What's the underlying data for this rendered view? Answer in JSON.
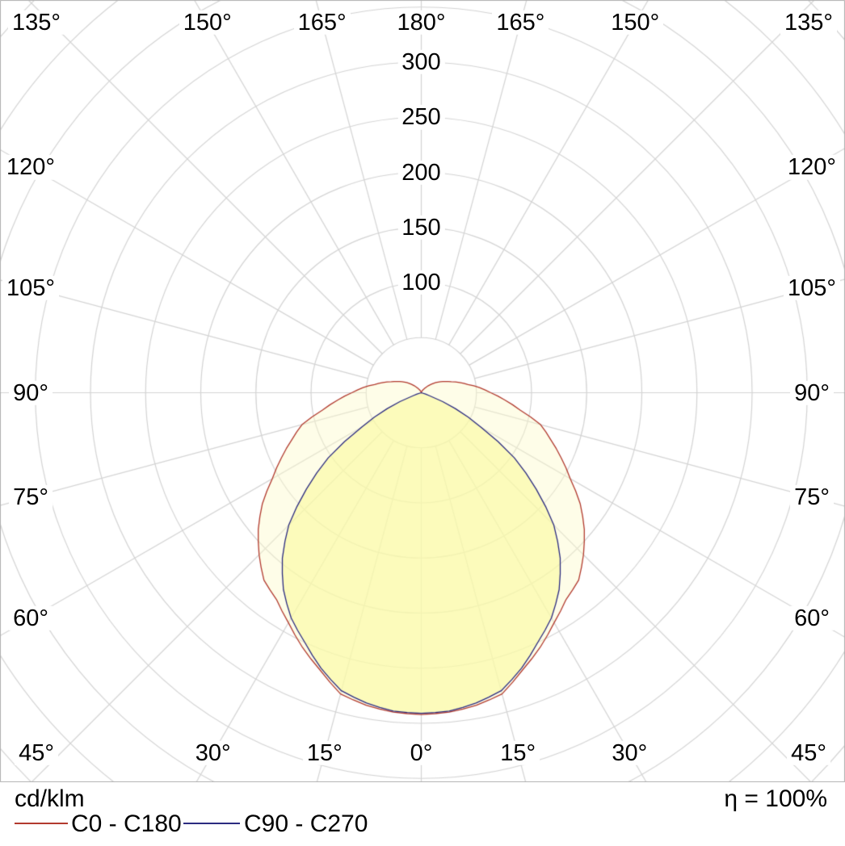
{
  "chart_data": {
    "type": "polar",
    "subtype": "photometric-intensity-distribution",
    "unit": "cd/klm",
    "efficiency": "η = 100%",
    "radial_axis": {
      "tick_labels": [
        "100",
        "150",
        "200",
        "250",
        "300"
      ],
      "tick_values": [
        100,
        150,
        200,
        250,
        300
      ],
      "ring_step": 50,
      "ring_count": 10
    },
    "angular_axis": {
      "spoke_step_deg": 15,
      "labels": [
        {
          "text": "135°",
          "angle": 135,
          "side": "left"
        },
        {
          "text": "150°",
          "angle": 150,
          "side": "left"
        },
        {
          "text": "165°",
          "angle": 165,
          "side": "left"
        },
        {
          "text": "180°",
          "angle": 180,
          "side": "center"
        },
        {
          "text": "165°",
          "angle": 165,
          "side": "right"
        },
        {
          "text": "150°",
          "angle": 150,
          "side": "right"
        },
        {
          "text": "135°",
          "angle": 135,
          "side": "right"
        },
        {
          "text": "120°",
          "angle": 120,
          "side": "left"
        },
        {
          "text": "120°",
          "angle": 120,
          "side": "right"
        },
        {
          "text": "105°",
          "angle": 105,
          "side": "left"
        },
        {
          "text": "105°",
          "angle": 105,
          "side": "right"
        },
        {
          "text": "90°",
          "angle": 90,
          "side": "left"
        },
        {
          "text": "90°",
          "angle": 90,
          "side": "right"
        },
        {
          "text": "75°",
          "angle": 75,
          "side": "left"
        },
        {
          "text": "75°",
          "angle": 75,
          "side": "right"
        },
        {
          "text": "60°",
          "angle": 60,
          "side": "left"
        },
        {
          "text": "60°",
          "angle": 60,
          "side": "right"
        },
        {
          "text": "45°",
          "angle": 45,
          "side": "left"
        },
        {
          "text": "45°",
          "angle": 45,
          "side": "right"
        },
        {
          "text": "30°",
          "angle": 30,
          "side": "left"
        },
        {
          "text": "30°",
          "angle": 30,
          "side": "right"
        },
        {
          "text": "15°",
          "angle": 15,
          "side": "left"
        },
        {
          "text": "15°",
          "angle": 15,
          "side": "right"
        },
        {
          "text": "0°",
          "angle": 0,
          "side": "center"
        }
      ]
    },
    "series": [
      {
        "name": "C0 - C180",
        "color": "#b23a2e",
        "fill": "rgba(252,250,205,0.45)",
        "gamma_deg": [
          0,
          5,
          10,
          15,
          20,
          25,
          30,
          35,
          40,
          45,
          50,
          55,
          60,
          65,
          70,
          75,
          80,
          85,
          90,
          95,
          100,
          105,
          110,
          115,
          120,
          125,
          130,
          135,
          140,
          145,
          150,
          155,
          160,
          165,
          170,
          175,
          180
        ],
        "cd_per_klm": [
          292,
          291,
          288,
          283,
          268,
          255,
          241,
          229,
          222,
          208,
          193,
          176,
          156,
          140,
          125,
          112,
          91,
          76,
          63,
          53,
          43,
          36,
          29,
          24,
          20,
          16,
          12,
          9,
          6,
          4,
          3,
          2,
          1,
          1,
          0,
          0,
          0
        ]
      },
      {
        "name": "C90 - C270",
        "color": "#2b2b80",
        "fill": "rgba(250,250,160,0.62)",
        "gamma_deg": [
          0,
          5,
          10,
          15,
          20,
          25,
          30,
          35,
          40,
          45,
          50,
          55,
          60,
          65,
          70,
          75,
          80,
          85,
          90,
          95,
          100,
          105,
          110,
          115,
          120,
          125,
          130,
          135,
          140,
          145,
          150,
          155,
          160,
          165,
          170,
          175,
          180
        ],
        "cd_per_klm": [
          291,
          290,
          286,
          280,
          266,
          250,
          236,
          218,
          196,
          170,
          136,
          103,
          62,
          34,
          8,
          0,
          0,
          0,
          0,
          0,
          0,
          0,
          0,
          0,
          0,
          0,
          0,
          0,
          0,
          0,
          0,
          0,
          0,
          0,
          0,
          0,
          0
        ]
      }
    ],
    "legend_position": "bottom"
  },
  "footer": {
    "unit_label": "cd/klm",
    "efficiency_label": "η = 100%",
    "legend": [
      {
        "label": "C0 - C180",
        "color": "#b23a2e"
      },
      {
        "label": "C90 - C270",
        "color": "#2b2b80"
      }
    ]
  },
  "colors": {
    "background": "#ffffff",
    "grid": "#d4d4d4",
    "border": "#b0b0b0",
    "text": "#000000"
  }
}
